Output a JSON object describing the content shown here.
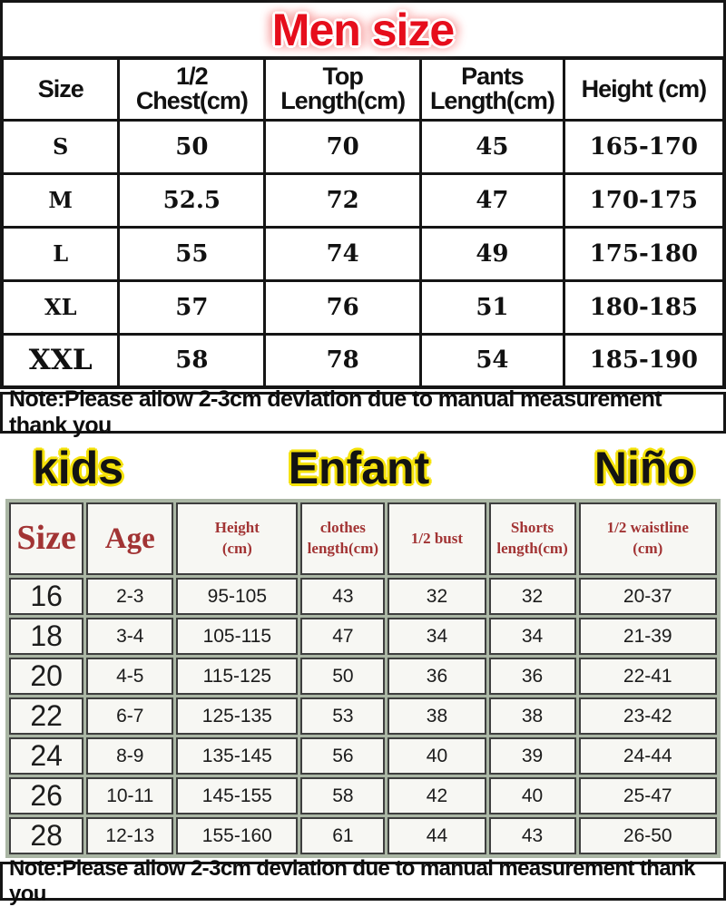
{
  "chart_data": [
    {
      "type": "table",
      "title": "Men size",
      "columns": [
        "Size",
        "1/2\nChest(cm)",
        "Top\nLength(cm)",
        "Pants\nLength(cm)",
        "Height (cm)"
      ],
      "rows": [
        [
          "S",
          "50",
          "70",
          "45",
          "165-170"
        ],
        [
          "M",
          "52.5",
          "72",
          "47",
          "170-175"
        ],
        [
          "L",
          "55",
          "74",
          "49",
          "175-180"
        ],
        [
          "XL",
          "57",
          "76",
          "51",
          "180-185"
        ],
        [
          "XXL",
          "58",
          "78",
          "54",
          "185-190"
        ]
      ],
      "note": "Note:Please allow 2-3cm deviation due to manual measurement thank you"
    },
    {
      "type": "table",
      "titles": [
        "kids",
        "Enfant",
        "Niño"
      ],
      "columns": [
        "Size",
        "Age",
        "Height\n(cm)",
        "clothes\nlength(cm)",
        "1/2 bust",
        "Shorts\nlength(cm)",
        "1/2 waistline\n(cm)"
      ],
      "rows": [
        [
          "16",
          "2-3",
          "95-105",
          "43",
          "32",
          "32",
          "20-37"
        ],
        [
          "18",
          "3-4",
          "105-115",
          "47",
          "34",
          "34",
          "21-39"
        ],
        [
          "20",
          "4-5",
          "115-125",
          "50",
          "36",
          "36",
          "22-41"
        ],
        [
          "22",
          "6-7",
          "125-135",
          "53",
          "38",
          "38",
          "23-42"
        ],
        [
          "24",
          "8-9",
          "135-145",
          "56",
          "40",
          "39",
          "24-44"
        ],
        [
          "26",
          "10-11",
          "145-155",
          "58",
          "42",
          "40",
          "25-47"
        ],
        [
          "28",
          "12-13",
          "155-160",
          "61",
          "44",
          "43",
          "26-50"
        ]
      ],
      "note": "Note:Please allow 2-3cm deviation due to manual measurement thank you"
    }
  ],
  "colors": {
    "men_title_red": "#e60e1c",
    "men_title_glow": "#f7a8a8",
    "kids_outline": "#f5e20a",
    "kids_header_text": "#a23434",
    "kids_border": "#3e3e3e",
    "kids_gap": "#aab6a4",
    "ink": "#151515"
  }
}
